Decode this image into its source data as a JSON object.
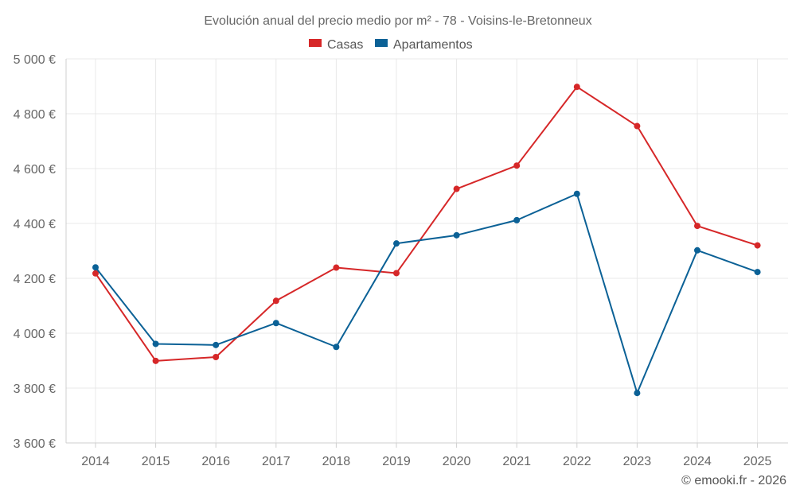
{
  "chart_data": {
    "type": "line",
    "title": "Evolución anual del precio medio por m² - 78 - Voisins-le-Bretonneux",
    "categories": [
      "2014",
      "2015",
      "2016",
      "2017",
      "2018",
      "2019",
      "2020",
      "2021",
      "2022",
      "2023",
      "2024",
      "2025"
    ],
    "series": [
      {
        "name": "Casas",
        "color": "#d62728",
        "values": [
          4218,
          3899,
          3913,
          4118,
          4239,
          4219,
          4526,
          4611,
          4898,
          4755,
          4391,
          4320
        ]
      },
      {
        "name": "Apartamentos",
        "color": "#0b6196",
        "values": [
          4240,
          3961,
          3957,
          4037,
          3950,
          4327,
          4357,
          4412,
          4508,
          3782,
          4302,
          4223
        ]
      }
    ],
    "ylim": [
      3600,
      5000
    ],
    "yticks": [
      3600,
      3800,
      4000,
      4200,
      4400,
      4600,
      4800,
      5000
    ],
    "ytick_labels": [
      "3 600 €",
      "3 800 €",
      "4 000 €",
      "4 200 €",
      "4 400 €",
      "4 600 €",
      "4 800 €",
      "5 000 €"
    ],
    "grid": true,
    "legend_position": "top-center",
    "xlabel": "",
    "ylabel": ""
  },
  "credit": "© emooki.fr - 2026"
}
